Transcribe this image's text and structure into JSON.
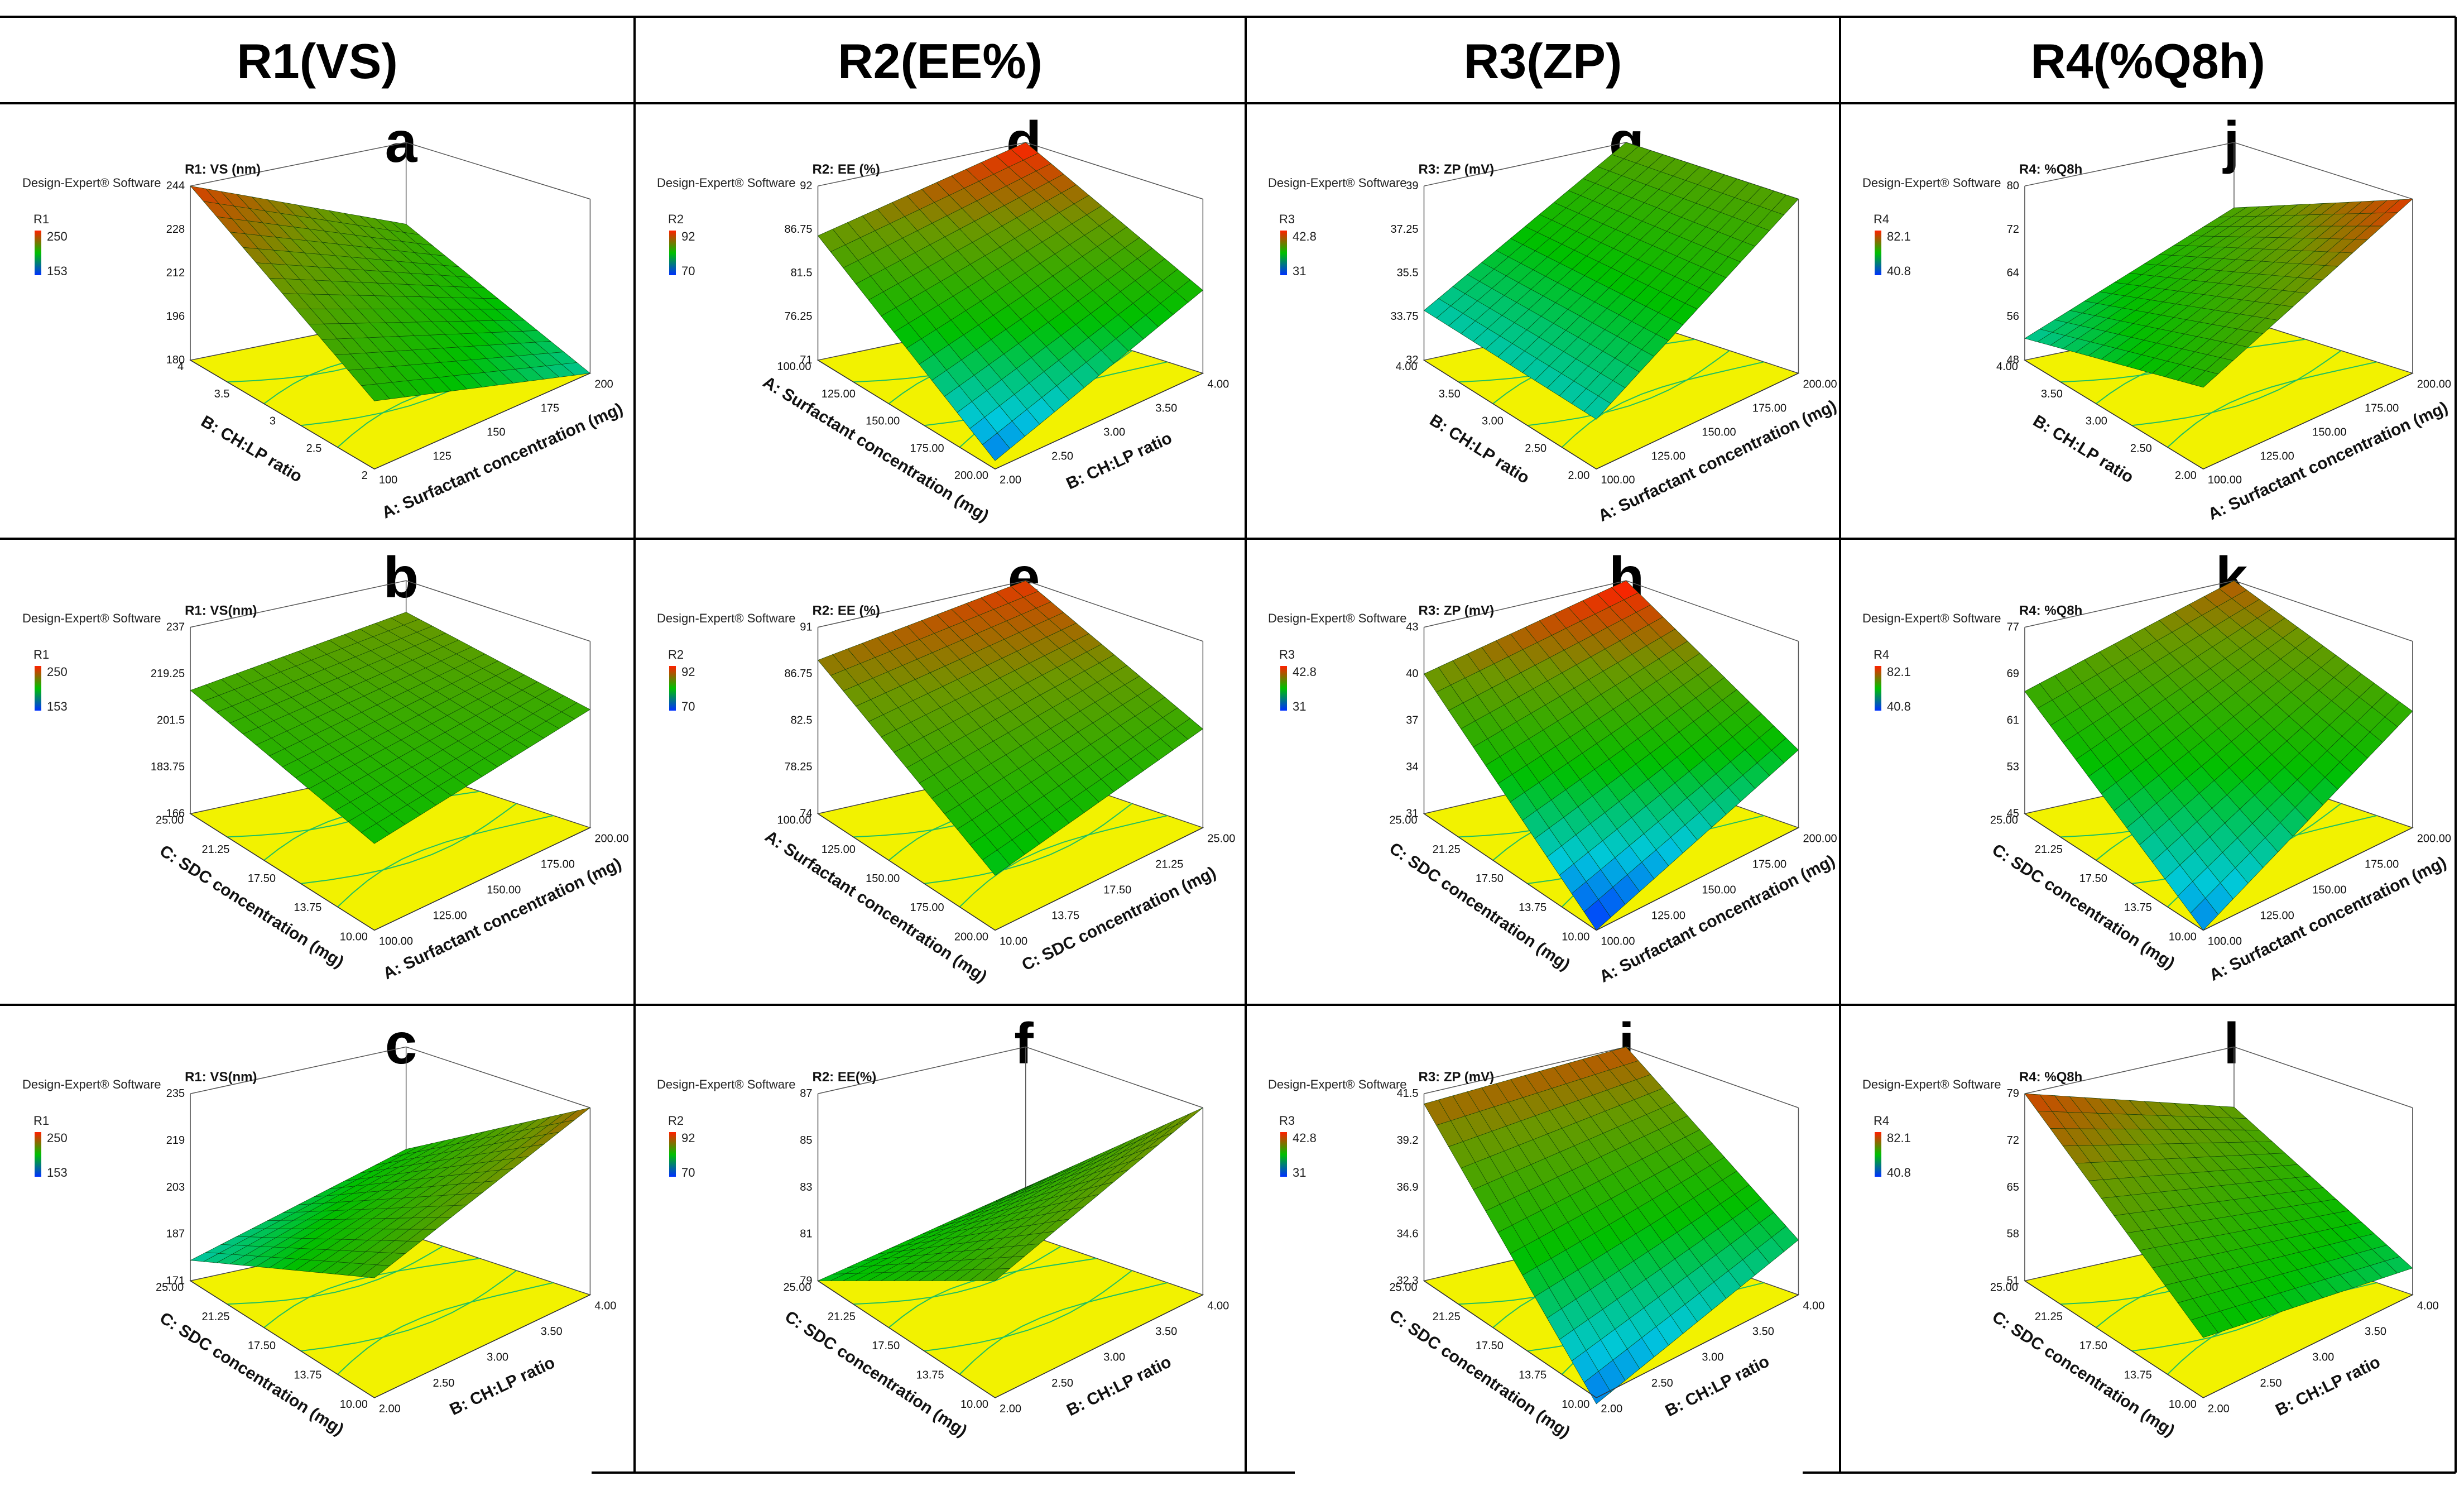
{
  "headers": [
    "R1(VS)",
    "R2(EE%)",
    "R3(ZP)",
    "R4(%Q8h)"
  ],
  "software_label": "Design-Expert® Software",
  "colors": {
    "low": "#0030ff",
    "mid": "#00c000",
    "high": "#ff2000",
    "base": "#f2f200",
    "contour": "#20c060"
  },
  "chart_data": [
    {
      "type": "surface",
      "letter": "a",
      "response": "R1",
      "title": "R1: VS (nm)",
      "legend_high": "250",
      "legend_low": "153",
      "z_ticks": [
        "244",
        "228",
        "212",
        "196",
        "180"
      ],
      "x_label": "B: CH:LP ratio",
      "x_ticks": [
        "4",
        "3.5",
        "3",
        "2.5",
        "2"
      ],
      "y_label": "A: Surfactant concentration (mg)",
      "y_ticks": [
        "100",
        "125",
        "150",
        "175",
        "200"
      ],
      "corner_values": [
        244,
        214,
        180,
        205
      ]
    },
    {
      "type": "surface",
      "letter": "b",
      "response": "R1",
      "title": "R1: VS(nm)",
      "legend_high": "250",
      "legend_low": "153",
      "z_ticks": [
        "237",
        "219.25",
        "201.5",
        "183.75",
        "166"
      ],
      "x_label": "C: SDC concentration (mg)",
      "x_ticks": [
        "25.00",
        "21.25",
        "17.50",
        "13.75",
        "10.00"
      ],
      "y_label": "A: Surfactant concentration (mg)",
      "y_ticks": [
        "100.00",
        "125.00",
        "150.00",
        "175.00",
        "200.00"
      ],
      "corner_values": [
        213,
        225,
        211,
        199
      ]
    },
    {
      "type": "surface",
      "letter": "c",
      "response": "R1",
      "title": "R1: VS(nm)",
      "legend_high": "250",
      "legend_low": "153",
      "z_ticks": [
        "235",
        "219",
        "203",
        "187",
        "171"
      ],
      "x_label": "C: SDC concentration (mg)",
      "x_ticks": [
        "25.00",
        "21.25",
        "17.50",
        "13.75",
        "10.00"
      ],
      "y_label": "B: CH:LP ratio",
      "y_ticks": [
        "2.00",
        "2.50",
        "3.00",
        "3.50",
        "4.00"
      ],
      "corner_values": [
        178,
        200,
        235,
        212
      ]
    },
    {
      "type": "surface",
      "letter": "d",
      "response": "R2",
      "title": "R2: EE (%)",
      "legend_high": "92",
      "legend_low": "70",
      "z_ticks": [
        "92",
        "86.75",
        "81.5",
        "76.25",
        "71"
      ],
      "x_label": "A: Surfactant concentration (mg)",
      "x_ticks": [
        "100.00",
        "125.00",
        "150.00",
        "175.00",
        "200.00"
      ],
      "y_label": "B: CH:LP ratio",
      "y_ticks": [
        "2.00",
        "2.50",
        "3.00",
        "3.50",
        "4.00"
      ],
      "corner_values": [
        86,
        92,
        81,
        72
      ]
    },
    {
      "type": "surface",
      "letter": "e",
      "response": "R2",
      "title": "R2: EE (%)",
      "legend_high": "92",
      "legend_low": "70",
      "z_ticks": [
        "91",
        "86.75",
        "82.5",
        "78.25",
        "74"
      ],
      "x_label": "A: Surfactant concentration (mg)",
      "x_ticks": [
        "100.00",
        "125.00",
        "150.00",
        "175.00",
        "200.00"
      ],
      "y_label": "C: SDC concentration (mg)",
      "y_ticks": [
        "10.00",
        "13.75",
        "17.50",
        "21.25",
        "25.00"
      ],
      "corner_values": [
        88,
        91,
        83,
        79
      ]
    },
    {
      "type": "surface",
      "letter": "f",
      "response": "R2",
      "title": "R2: EE(%)",
      "legend_high": "92",
      "legend_low": "70",
      "z_ticks": [
        "87",
        "85",
        "83",
        "81",
        "79"
      ],
      "x_label": "C: SDC concentration (mg)",
      "x_ticks": [
        "25.00",
        "21.25",
        "17.50",
        "13.75",
        "10.00"
      ],
      "y_label": "B: CH:LP ratio",
      "y_ticks": [
        "2.00",
        "2.50",
        "3.00",
        "3.50",
        "4.00"
      ],
      "corner_values": [
        79,
        81,
        87,
        84
      ]
    },
    {
      "type": "surface",
      "letter": "g",
      "response": "R3",
      "title": "R3: ZP (mV)",
      "legend_high": "42.8",
      "legend_low": "31",
      "z_ticks": [
        "39",
        "37.25",
        "35.5",
        "33.75",
        "32"
      ],
      "x_label": "B: CH:LP ratio",
      "x_ticks": [
        "4.00",
        "3.50",
        "3.00",
        "2.50",
        "2.00"
      ],
      "y_label": "A: Surfactant concentration (mg)",
      "y_ticks": [
        "100.00",
        "125.00",
        "150.00",
        "175.00",
        "200.00"
      ],
      "corner_values": [
        34,
        39,
        39,
        34
      ]
    },
    {
      "type": "surface",
      "letter": "h",
      "response": "R3",
      "title": "R3: ZP (mV)",
      "legend_high": "42.8",
      "legend_low": "31",
      "z_ticks": [
        "43",
        "40",
        "37",
        "34",
        "31"
      ],
      "x_label": "C: SDC concentration (mg)",
      "x_ticks": [
        "25.00",
        "21.25",
        "17.50",
        "13.75",
        "10.00"
      ],
      "y_label": "A: Surfactant concentration (mg)",
      "y_ticks": [
        "100.00",
        "125.00",
        "150.00",
        "175.00",
        "200.00"
      ],
      "corner_values": [
        40,
        43,
        36,
        31
      ]
    },
    {
      "type": "surface",
      "letter": "i",
      "response": "R3",
      "title": "R3: ZP (mV)",
      "legend_high": "42.8",
      "legend_low": "31",
      "z_ticks": [
        "41.5",
        "39.2",
        "36.9",
        "34.6",
        "32.3"
      ],
      "x_label": "C: SDC concentration (mg)",
      "x_ticks": [
        "25.00",
        "21.25",
        "17.50",
        "13.75",
        "10.00"
      ],
      "y_label": "B: CH:LP ratio",
      "y_ticks": [
        "2.00",
        "2.50",
        "3.00",
        "3.50",
        "4.00"
      ],
      "corner_values": [
        41,
        41.5,
        35,
        32
      ]
    },
    {
      "type": "surface",
      "letter": "j",
      "response": "R4",
      "title": "R4: %Q8h",
      "legend_high": "82.1",
      "legend_low": "40.8",
      "z_ticks": [
        "80",
        "72",
        "64",
        "56",
        "48"
      ],
      "x_label": "B: CH:LP ratio",
      "x_ticks": [
        "4.00",
        "3.50",
        "3.00",
        "2.50",
        "2.00"
      ],
      "y_label": "A: Surfactant concentration (mg)",
      "y_ticks": [
        "100.00",
        "125.00",
        "150.00",
        "175.00",
        "200.00"
      ],
      "corner_values": [
        52,
        68,
        80,
        63
      ]
    },
    {
      "type": "surface",
      "letter": "k",
      "response": "R4",
      "title": "R4: %Q8h",
      "legend_high": "82.1",
      "legend_low": "40.8",
      "z_ticks": [
        "77",
        "69",
        "61",
        "53",
        "45"
      ],
      "x_label": "C: SDC concentration (mg)",
      "x_ticks": [
        "25.00",
        "21.25",
        "17.50",
        "13.75",
        "10.00"
      ],
      "y_label": "A: Surfactant concentration (mg)",
      "y_ticks": [
        "100.00",
        "125.00",
        "150.00",
        "175.00",
        "200.00"
      ],
      "corner_values": [
        66,
        77,
        65,
        45
      ]
    },
    {
      "type": "surface",
      "letter": "l",
      "response": "R4",
      "title": "R4: %Q8h",
      "legend_high": "82.1",
      "legend_low": "40.8",
      "z_ticks": [
        "79",
        "72",
        "65",
        "58",
        "51"
      ],
      "x_label": "C: SDC concentration (mg)",
      "x_ticks": [
        "25.00",
        "21.25",
        "17.50",
        "13.75",
        "10.00"
      ],
      "y_label": "B: CH:LP ratio",
      "y_ticks": [
        "2.00",
        "2.50",
        "3.00",
        "3.50",
        "4.00"
      ],
      "corner_values": [
        79,
        70,
        55,
        60
      ]
    }
  ]
}
